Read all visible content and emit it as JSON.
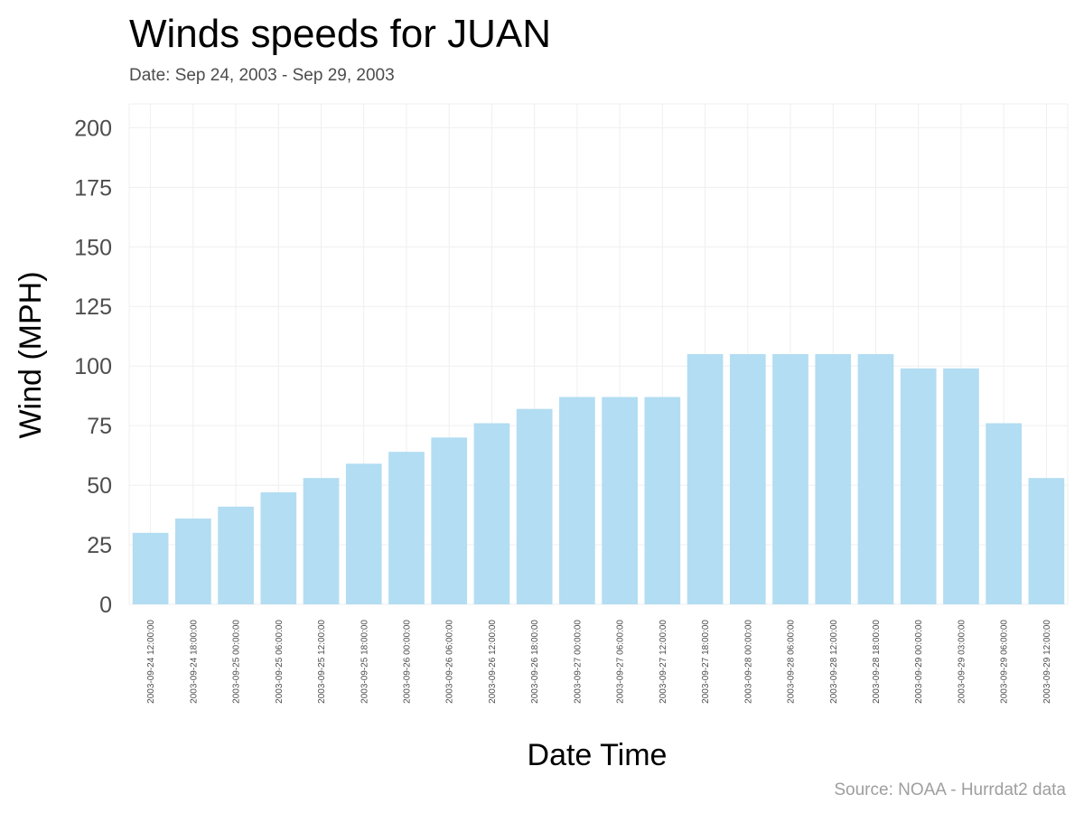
{
  "chart_data": {
    "type": "bar",
    "title": "Winds speeds for JUAN",
    "subtitle": "Date:  Sep 24, 2003 - Sep 29, 2003",
    "xlabel": "Date Time",
    "ylabel": "Wind (MPH)",
    "caption": "Source: NOAA - Hurrdat2 data",
    "ylim": [
      0,
      210
    ],
    "yticks": [
      0,
      25,
      50,
      75,
      100,
      125,
      150,
      175,
      200
    ],
    "grid": true,
    "bar_color": "#b2ddf2",
    "grid_color": "#efefef",
    "categories": [
      "2003-09-24 12:00:00",
      "2003-09-24 18:00:00",
      "2003-09-25 00:00:00",
      "2003-09-25 06:00:00",
      "2003-09-25 12:00:00",
      "2003-09-25 18:00:00",
      "2003-09-26 00:00:00",
      "2003-09-26 06:00:00",
      "2003-09-26 12:00:00",
      "2003-09-26 18:00:00",
      "2003-09-27 00:00:00",
      "2003-09-27 06:00:00",
      "2003-09-27 12:00:00",
      "2003-09-27 18:00:00",
      "2003-09-28 00:00:00",
      "2003-09-28 06:00:00",
      "2003-09-28 12:00:00",
      "2003-09-28 18:00:00",
      "2003-09-29 00:00:00",
      "2003-09-29 03:00:00",
      "2003-09-29 06:00:00",
      "2003-09-29 12:00:00"
    ],
    "values": [
      30,
      36,
      41,
      47,
      53,
      59,
      64,
      70,
      76,
      82,
      87,
      87,
      87,
      105,
      105,
      105,
      105,
      105,
      99,
      99,
      76,
      53
    ]
  }
}
